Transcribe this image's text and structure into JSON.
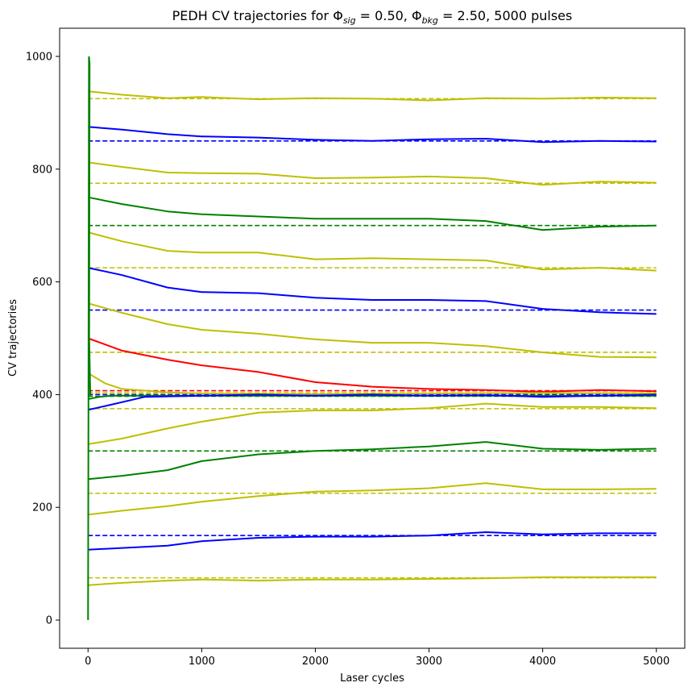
{
  "chart_data": {
    "type": "line",
    "title": "PEDH CV trajectories for Φ",
    "title_parts": {
      "prefix": "PEDH CV trajectories for Φ",
      "sig_sub": "sig",
      "sig_text": " = 0.50, Φ",
      "bkg_sub": "bkg",
      "bkg_text": " = 2.50, 5000 pulses"
    },
    "xlabel": "Laser cycles",
    "ylabel": "CV trajectories",
    "xlim": [
      -250,
      5250
    ],
    "ylim": [
      -50,
      1050
    ],
    "x_ticks": [
      0,
      1000,
      2000,
      3000,
      4000,
      5000
    ],
    "y_ticks": [
      0,
      200,
      400,
      600,
      800,
      1000
    ],
    "grid": false,
    "colors": {
      "yellow": "#bfbf00",
      "blue": "#0000ff",
      "green": "#008000",
      "red": "#ff0000"
    },
    "series": [
      {
        "color": "yellow",
        "target": 925,
        "points": [
          [
            0,
            938
          ],
          [
            300,
            932
          ],
          [
            700,
            926
          ],
          [
            1000,
            928
          ],
          [
            1500,
            924
          ],
          [
            2000,
            926
          ],
          [
            2500,
            925
          ],
          [
            3000,
            922
          ],
          [
            3500,
            926
          ],
          [
            4000,
            925
          ],
          [
            4500,
            927
          ],
          [
            5000,
            926
          ]
        ]
      },
      {
        "color": "blue",
        "target": 850,
        "points": [
          [
            0,
            875
          ],
          [
            300,
            870
          ],
          [
            700,
            862
          ],
          [
            1000,
            858
          ],
          [
            1500,
            856
          ],
          [
            2000,
            852
          ],
          [
            2500,
            850
          ],
          [
            3000,
            853
          ],
          [
            3500,
            854
          ],
          [
            4000,
            848
          ],
          [
            4500,
            850
          ],
          [
            5000,
            849
          ]
        ]
      },
      {
        "color": "yellow",
        "target": 775,
        "points": [
          [
            0,
            812
          ],
          [
            300,
            804
          ],
          [
            700,
            794
          ],
          [
            1000,
            793
          ],
          [
            1500,
            792
          ],
          [
            2000,
            784
          ],
          [
            2500,
            785
          ],
          [
            3000,
            787
          ],
          [
            3500,
            784
          ],
          [
            4000,
            772
          ],
          [
            4500,
            778
          ],
          [
            5000,
            776
          ]
        ]
      },
      {
        "color": "green",
        "target": 700,
        "points": [
          [
            0,
            750
          ],
          [
            300,
            738
          ],
          [
            700,
            725
          ],
          [
            1000,
            720
          ],
          [
            1500,
            716
          ],
          [
            2000,
            712
          ],
          [
            2500,
            712
          ],
          [
            3000,
            712
          ],
          [
            3500,
            708
          ],
          [
            4000,
            692
          ],
          [
            4500,
            698
          ],
          [
            5000,
            700
          ]
        ]
      },
      {
        "color": "yellow",
        "target": 625,
        "points": [
          [
            0,
            688
          ],
          [
            300,
            672
          ],
          [
            700,
            655
          ],
          [
            1000,
            652
          ],
          [
            1500,
            652
          ],
          [
            2000,
            640
          ],
          [
            2500,
            642
          ],
          [
            3000,
            640
          ],
          [
            3500,
            638
          ],
          [
            4000,
            622
          ],
          [
            4500,
            625
          ],
          [
            5000,
            620
          ]
        ]
      },
      {
        "color": "blue",
        "target": 550,
        "points": [
          [
            0,
            625
          ],
          [
            300,
            612
          ],
          [
            700,
            590
          ],
          [
            1000,
            582
          ],
          [
            1500,
            580
          ],
          [
            2000,
            572
          ],
          [
            2500,
            568
          ],
          [
            3000,
            568
          ],
          [
            3500,
            566
          ],
          [
            4000,
            552
          ],
          [
            4500,
            546
          ],
          [
            5000,
            543
          ]
        ]
      },
      {
        "color": "yellow",
        "target": 475,
        "points": [
          [
            0,
            562
          ],
          [
            300,
            545
          ],
          [
            700,
            525
          ],
          [
            1000,
            515
          ],
          [
            1500,
            508
          ],
          [
            2000,
            498
          ],
          [
            2500,
            492
          ],
          [
            3000,
            492
          ],
          [
            3500,
            486
          ],
          [
            4000,
            475
          ],
          [
            4500,
            467
          ],
          [
            5000,
            466
          ]
        ]
      },
      {
        "color": "red",
        "target": 407,
        "points": [
          [
            0,
            500
          ],
          [
            300,
            478
          ],
          [
            700,
            462
          ],
          [
            1000,
            452
          ],
          [
            1500,
            440
          ],
          [
            2000,
            422
          ],
          [
            2500,
            414
          ],
          [
            3000,
            410
          ],
          [
            3500,
            408
          ],
          [
            4000,
            405
          ],
          [
            4500,
            408
          ],
          [
            5000,
            406
          ]
        ]
      },
      {
        "color": "yellow",
        "target": 403,
        "points": [
          [
            0,
            438
          ],
          [
            150,
            420
          ],
          [
            300,
            410
          ],
          [
            700,
            404
          ],
          [
            1000,
            402
          ],
          [
            2000,
            401
          ],
          [
            3000,
            402
          ],
          [
            4000,
            403
          ],
          [
            5000,
            402
          ]
        ]
      },
      {
        "color": "green",
        "target": 397,
        "points": [
          [
            0,
            392
          ],
          [
            100,
            396
          ],
          [
            200,
            398
          ],
          [
            400,
            398
          ],
          [
            1000,
            398
          ],
          [
            3000,
            398
          ],
          [
            5000,
            398
          ]
        ]
      },
      {
        "color": "blue",
        "target": 400,
        "points": [
          [
            0,
            373
          ],
          [
            200,
            382
          ],
          [
            500,
            396
          ],
          [
            1000,
            398
          ],
          [
            1500,
            400
          ],
          [
            2000,
            398
          ],
          [
            2500,
            400
          ],
          [
            3000,
            398
          ],
          [
            3500,
            399
          ],
          [
            4000,
            396
          ],
          [
            4500,
            398
          ],
          [
            5000,
            400
          ]
        ]
      },
      {
        "color": "yellow",
        "target": 375,
        "points": [
          [
            0,
            312
          ],
          [
            300,
            322
          ],
          [
            700,
            340
          ],
          [
            1000,
            352
          ],
          [
            1500,
            368
          ],
          [
            2000,
            372
          ],
          [
            2500,
            372
          ],
          [
            3000,
            376
          ],
          [
            3500,
            384
          ],
          [
            4000,
            378
          ],
          [
            4500,
            378
          ],
          [
            5000,
            376
          ]
        ]
      },
      {
        "color": "green",
        "target": 300,
        "points": [
          [
            0,
            250
          ],
          [
            300,
            256
          ],
          [
            700,
            266
          ],
          [
            1000,
            282
          ],
          [
            1500,
            294
          ],
          [
            2000,
            300
          ],
          [
            2500,
            303
          ],
          [
            3000,
            308
          ],
          [
            3500,
            316
          ],
          [
            4000,
            304
          ],
          [
            4500,
            302
          ],
          [
            5000,
            304
          ]
        ]
      },
      {
        "color": "yellow",
        "target": 225,
        "points": [
          [
            0,
            187
          ],
          [
            300,
            194
          ],
          [
            700,
            202
          ],
          [
            1000,
            210
          ],
          [
            1500,
            220
          ],
          [
            2000,
            228
          ],
          [
            2500,
            230
          ],
          [
            3000,
            234
          ],
          [
            3500,
            243
          ],
          [
            4000,
            232
          ],
          [
            4500,
            232
          ],
          [
            5000,
            233
          ]
        ]
      },
      {
        "color": "blue",
        "target": 150,
        "points": [
          [
            0,
            125
          ],
          [
            300,
            128
          ],
          [
            700,
            132
          ],
          [
            1000,
            140
          ],
          [
            1500,
            146
          ],
          [
            2000,
            148
          ],
          [
            2500,
            148
          ],
          [
            3000,
            150
          ],
          [
            3500,
            156
          ],
          [
            4000,
            152
          ],
          [
            4500,
            154
          ],
          [
            5000,
            154
          ]
        ]
      },
      {
        "color": "yellow",
        "target": 75,
        "points": [
          [
            0,
            62
          ],
          [
            300,
            66
          ],
          [
            700,
            70
          ],
          [
            1000,
            72
          ],
          [
            1500,
            70
          ],
          [
            2000,
            72
          ],
          [
            2500,
            72
          ],
          [
            3000,
            73
          ],
          [
            3500,
            74
          ],
          [
            4000,
            76
          ],
          [
            4500,
            76
          ],
          [
            5000,
            76
          ]
        ]
      }
    ],
    "spikes": [
      {
        "color": "green",
        "points": [
          [
            0,
            0
          ],
          [
            4,
            380
          ],
          [
            8,
            1000
          ],
          [
            14,
            988
          ],
          [
            10,
            500
          ],
          [
            20,
            398
          ]
        ]
      }
    ]
  }
}
